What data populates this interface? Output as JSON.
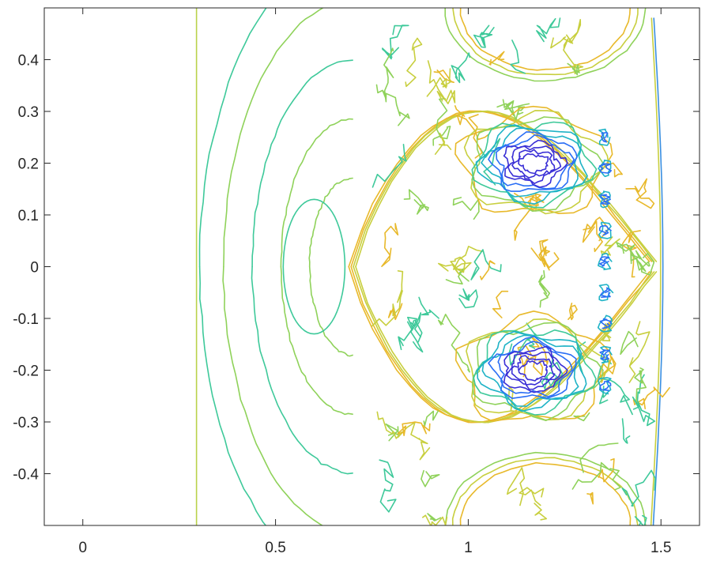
{
  "chart_data": {
    "type": "contour",
    "title": "",
    "xlabel": "",
    "ylabel": "",
    "xlim": [
      -0.1,
      1.6
    ],
    "ylim": [
      -0.5,
      0.5
    ],
    "x_ticks": [
      0,
      0.5,
      1,
      1.5
    ],
    "x_tick_labels": [
      "0",
      "0.5",
      "1",
      "1.5"
    ],
    "y_ticks": [
      0.4,
      0.3,
      0.2,
      0.1,
      0,
      -0.1,
      -0.2,
      -0.3,
      -0.4
    ],
    "y_tick_labels": [
      "0.4",
      "0.3",
      "0.2",
      "0.1",
      "0",
      "-0.1",
      "-0.2",
      "-0.3",
      "-0.4"
    ],
    "box": true,
    "grid": false,
    "colormap": [
      "#3a2fd6",
      "#2a6ef5",
      "#1fb3c6",
      "#3ec99a",
      "#8fd25a",
      "#c8cf3f",
      "#e8b92b"
    ],
    "features": {
      "incident_line_x": 0.295,
      "incident_line_color": "#b9d24a",
      "main_shock_x": 1.48,
      "main_shock_color": "#3a8fe0",
      "bow_shock_vertex": [
        0.69,
        0.0
      ],
      "bow_shock_top": [
        1.47,
        0.2
      ],
      "triple_point_y": 0.2,
      "vortex_centers": [
        [
          1.17,
          0.2
        ],
        [
          1.17,
          -0.2
        ]
      ],
      "arc_centers_x": 0.7,
      "arc_radii": [
        0.18,
        0.3,
        0.42,
        0.54,
        0.64
      ]
    }
  }
}
